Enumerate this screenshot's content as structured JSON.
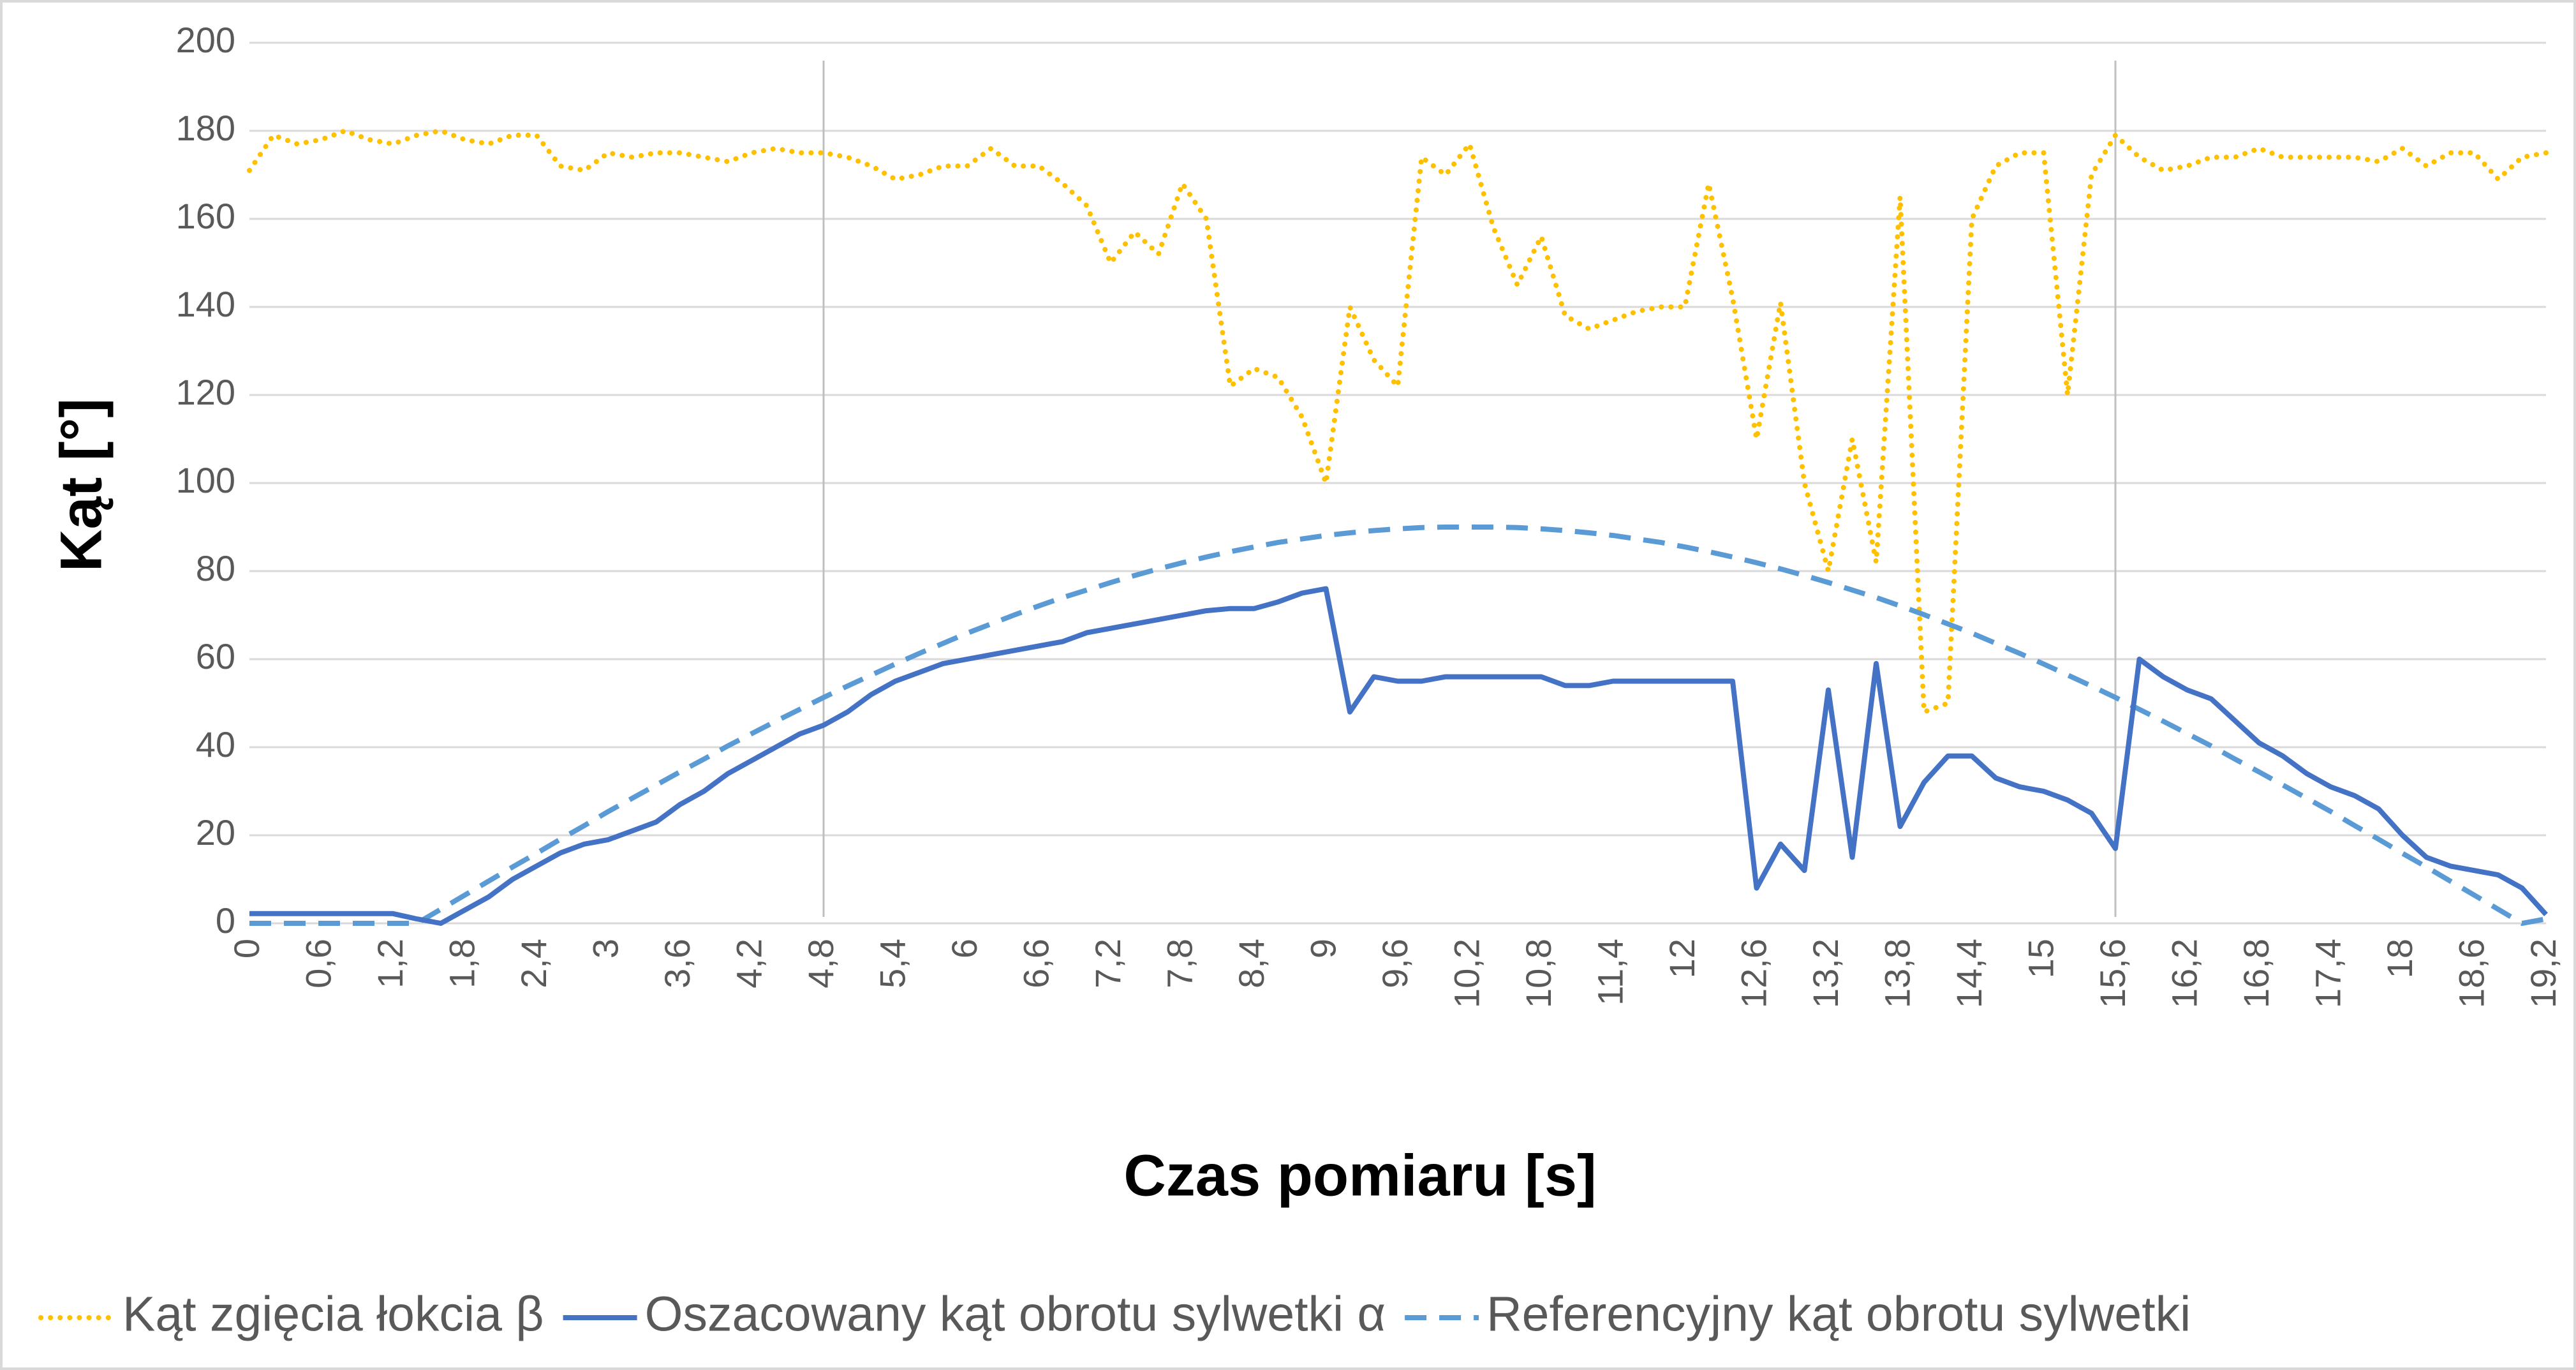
{
  "chart_data": {
    "type": "line",
    "y_label": "Kąt [°]",
    "x_label": "Czas pomiaru [s]",
    "x": [
      0,
      0.2,
      0.4,
      0.6,
      0.8,
      1,
      1.2,
      1.4,
      1.6,
      1.8,
      2,
      2.2,
      2.4,
      2.6,
      2.8,
      3,
      3.2,
      3.4,
      3.6,
      3.8,
      4,
      4.2,
      4.4,
      4.6,
      4.8,
      5,
      5.2,
      5.4,
      5.6,
      5.8,
      6,
      6.2,
      6.4,
      6.6,
      6.8,
      7,
      7.2,
      7.4,
      7.6,
      7.8,
      8,
      8.2,
      8.4,
      8.6,
      8.8,
      9,
      9.2,
      9.4,
      9.6,
      9.8,
      10,
      10.2,
      10.4,
      10.6,
      10.8,
      11,
      11.2,
      11.4,
      11.6,
      11.8,
      12,
      12.2,
      12.4,
      12.6,
      12.8,
      13,
      13.2,
      13.4,
      13.6,
      13.8,
      14,
      14.2,
      14.4,
      14.6,
      14.8,
      15,
      15.2,
      15.4,
      15.6,
      15.8,
      16,
      16.2,
      16.4,
      16.6,
      16.8,
      17,
      17.2,
      17.4,
      17.6,
      17.8,
      18,
      18.2,
      18.4,
      18.6,
      18.8,
      19,
      19.2
    ],
    "series": [
      {
        "name": "Kąt zgięcia łokcia β",
        "color": "#ffc000",
        "style": "dotted",
        "values": [
          171,
          179,
          177,
          178,
          180,
          178,
          177,
          179,
          180,
          178,
          177,
          179,
          179,
          172,
          171,
          175,
          174,
          175,
          175,
          174,
          173,
          175,
          176,
          175,
          175,
          174,
          172,
          169,
          170,
          172,
          172,
          176,
          172,
          172,
          168,
          163,
          150,
          157,
          152,
          168,
          160,
          122,
          126,
          124,
          115,
          100,
          140,
          128,
          122,
          174,
          170,
          177,
          158,
          145,
          156,
          138,
          135,
          137,
          139,
          140,
          140,
          168,
          142,
          110,
          141,
          100,
          80,
          110,
          82,
          165,
          48,
          50,
          160,
          172,
          175,
          175,
          120,
          170,
          179,
          174,
          171,
          172,
          174,
          174,
          176,
          174,
          174,
          174,
          174,
          173,
          176,
          172,
          175,
          175,
          169,
          174,
          175
        ]
      },
      {
        "name": "Oszacowany kąt obrotu sylwetki α",
        "color": "#4472c4",
        "style": "solid",
        "values": [
          2.2,
          2.2,
          2.2,
          2.2,
          2.2,
          2.2,
          2.2,
          1,
          0,
          3,
          6,
          10,
          13,
          16,
          18,
          19,
          21,
          23,
          27,
          30,
          34,
          37,
          40,
          43,
          45,
          48,
          52,
          55,
          57,
          59,
          60,
          61,
          62,
          63,
          64,
          66,
          67,
          68,
          69,
          70,
          71,
          71.5,
          71.5,
          73,
          75,
          76,
          48,
          56,
          55,
          55,
          56,
          56,
          56,
          56,
          56,
          54,
          54,
          55,
          55,
          55,
          55,
          55,
          55,
          8,
          18,
          12,
          53,
          15,
          59,
          22,
          32,
          38,
          38,
          33,
          31,
          30,
          28,
          25,
          17,
          60,
          56,
          53,
          51,
          46,
          41,
          38,
          34,
          31,
          29,
          26,
          20,
          15,
          13,
          12,
          11,
          8,
          2
        ]
      },
      {
        "name": "Referencyjny kąt obrotu sylwetki",
        "color": "#5b9bd5",
        "style": "dashed",
        "values": [
          0,
          0,
          0,
          0,
          0,
          0,
          0,
          0,
          3.2,
          6.4,
          9.6,
          12.8,
          15.9,
          19.1,
          22.2,
          25.4,
          28.4,
          31.4,
          34.4,
          37.3,
          40.3,
          43.1,
          45.9,
          48.6,
          51.3,
          53.9,
          56.4,
          58.9,
          61.3,
          63.6,
          65.9,
          68.0,
          70.1,
          72.1,
          74.0,
          75.7,
          77.4,
          79.0,
          80.5,
          81.9,
          83.2,
          84.4,
          85.5,
          86.5,
          87.3,
          88.1,
          88.7,
          89.2,
          89.6,
          89.9,
          90.0,
          90.0,
          90.0,
          89.9,
          89.6,
          89.2,
          88.7,
          88.1,
          87.3,
          86.5,
          85.5,
          84.4,
          83.2,
          81.9,
          80.5,
          79.0,
          77.4,
          75.7,
          74.0,
          72.1,
          70.1,
          68.0,
          65.9,
          63.6,
          61.3,
          58.9,
          56.4,
          53.9,
          51.3,
          48.6,
          45.9,
          43.1,
          40.3,
          37.3,
          34.4,
          31.4,
          28.4,
          25.4,
          22.2,
          19.1,
          15.9,
          12.8,
          9.6,
          6.4,
          3.2,
          0,
          1
        ]
      }
    ],
    "xlim": [
      0,
      19.2
    ],
    "xticks": [
      0,
      {
        "value": 0.6,
        "label": "0,6"
      },
      {
        "value": 1.2,
        "label": "1,2"
      },
      {
        "value": 1.8,
        "label": "1,8"
      },
      {
        "value": 2.4,
        "label": "2,4"
      },
      3,
      {
        "value": 3.6,
        "label": "3,6"
      },
      {
        "value": 4.2,
        "label": "4,2"
      },
      {
        "value": 4.8,
        "label": "4,8"
      },
      {
        "value": 5.4,
        "label": "5,4"
      },
      6,
      {
        "value": 6.6,
        "label": "6,6"
      },
      {
        "value": 7.2,
        "label": "7,2"
      },
      {
        "value": 7.8,
        "label": "7,8"
      },
      {
        "value": 8.4,
        "label": "8,4"
      },
      9,
      {
        "value": 9.6,
        "label": "9,6"
      },
      {
        "value": 10.2,
        "label": "10,2"
      },
      {
        "value": 10.8,
        "label": "10,8"
      },
      {
        "value": 11.4,
        "label": "11,4"
      },
      12,
      {
        "value": 12.6,
        "label": "12,6"
      },
      {
        "value": 13.2,
        "label": "13,2"
      },
      {
        "value": 13.8,
        "label": "13,8"
      },
      {
        "value": 14.4,
        "label": "14,4"
      },
      15,
      {
        "value": 15.6,
        "label": "15,6"
      },
      {
        "value": 16.2,
        "label": "16,2"
      },
      {
        "value": 16.8,
        "label": "16,8"
      },
      {
        "value": 17.4,
        "label": "17,4"
      },
      18,
      {
        "value": 18.6,
        "label": "18,6"
      },
      {
        "value": 19.2,
        "label": "19,2"
      }
    ],
    "ylim": [
      0,
      200
    ],
    "yticks": [
      0,
      20,
      40,
      60,
      80,
      100,
      120,
      140,
      160,
      180,
      200
    ],
    "x_reference_lines": [
      4.8,
      15.6
    ],
    "grid": true,
    "legend": "bottom"
  }
}
